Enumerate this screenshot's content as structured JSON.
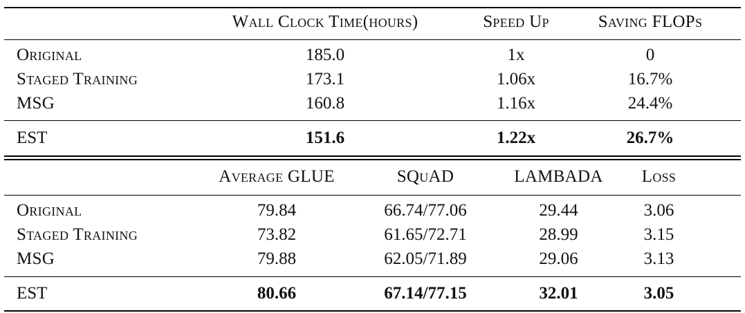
{
  "table1": {
    "columns": [
      "Wall Clock Time(hours)",
      "Speed Up",
      "Saving FLOPs"
    ],
    "rows": [
      {
        "method": "Original",
        "values": [
          "185.0",
          "1x",
          "0"
        ]
      },
      {
        "method": "Staged Training",
        "values": [
          "173.1",
          "1.06x",
          "16.7%"
        ]
      },
      {
        "method": "MSG",
        "values": [
          "160.8",
          "1.16x",
          "24.4%"
        ]
      }
    ],
    "best": {
      "method": "EST",
      "values": [
        "151.6",
        "1.22x",
        "26.7%"
      ]
    }
  },
  "table2": {
    "columns": [
      "Average GLUE",
      "SQuAD",
      "LAMBADA",
      "Loss"
    ],
    "rows": [
      {
        "method": "Original",
        "values": [
          "79.84",
          "66.74/77.06",
          "29.44",
          "3.06"
        ]
      },
      {
        "method": "Staged Training",
        "values": [
          "73.82",
          "61.65/72.71",
          "28.99",
          "3.15"
        ]
      },
      {
        "method": "MSG",
        "values": [
          "79.88",
          "62.05/71.89",
          "29.06",
          "3.13"
        ]
      }
    ],
    "best": {
      "method": "EST",
      "values": [
        "80.66",
        "67.14/77.15",
        "32.01",
        "3.05"
      ]
    }
  }
}
